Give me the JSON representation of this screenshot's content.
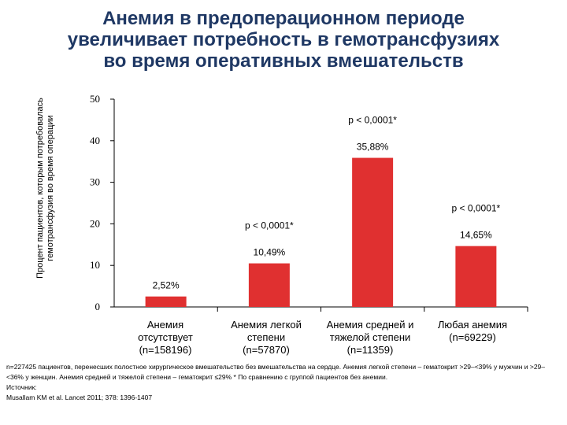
{
  "title_lines": [
    "Анемия в предоперационном периоде",
    "увеличивает потребность в гемотрансфузиях",
    "во время оперативных вмешательств"
  ],
  "chart_data": {
    "type": "bar",
    "ylabel_lines": [
      "Процент пациентов, которым потребовалась",
      "гемотрансфузия во время операции"
    ],
    "ylim": [
      0,
      50
    ],
    "yticks": [
      0,
      10,
      20,
      30,
      40,
      50
    ],
    "categories": [
      [
        "Анемия",
        "отсутствует",
        "(n=158196)"
      ],
      [
        "Анемия легкой",
        "степени",
        "(n=57870)"
      ],
      [
        "Анемия средней и",
        "тяжелой степени",
        "(n=11359)"
      ],
      [
        "Любая анемия",
        "(n=69229)"
      ]
    ],
    "values": [
      2.52,
      10.49,
      35.88,
      14.65
    ],
    "value_labels": [
      "2,52%",
      "10,49%",
      "35,88%",
      "14,65%"
    ],
    "p_labels": [
      "",
      "p < 0,0001*",
      "p < 0,0001*",
      "p < 0,0001*"
    ],
    "bar_color": "#e03030",
    "grid": false
  },
  "notes": [
    "n=227425 пациентов, перенесших полостное хирургическое вмешательство без вмешательства на сердце. Анемия легкой степени – гематокрит >29–<39% у мужчин и >29–<36% у женщин. Анемия средней и тяжелой степени – гематокрит ≤29% * По сравнению с группой пациентов без анемии.",
    "Источник:",
    "Musallam KM et al. Lancet 2011; 378: 1396-1407"
  ]
}
